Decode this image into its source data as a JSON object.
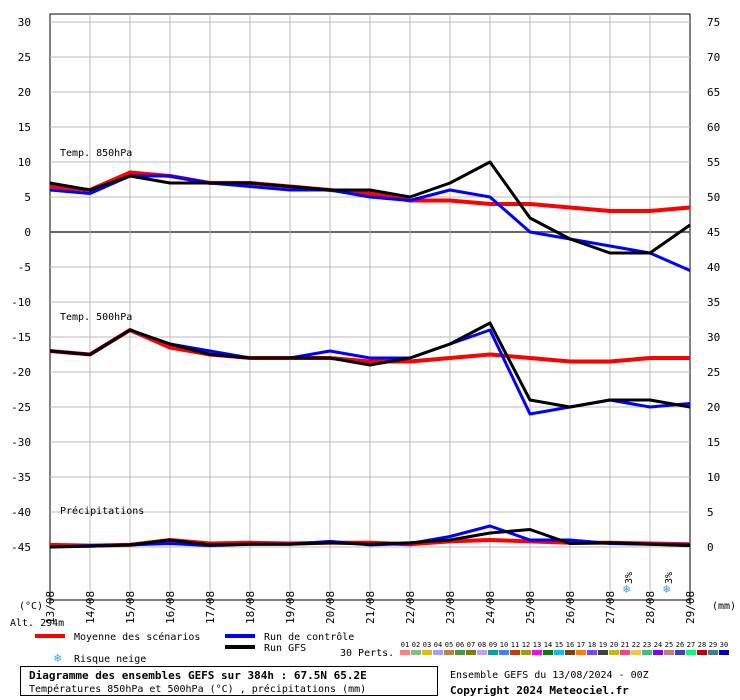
{
  "chart_data": {
    "type": "line",
    "title": "Diagramme des ensembles GEFS sur 384h : 67.5N 65.2E",
    "subtitle": "Températures 850hPa et 500hPa (°C) , précipitations (mm)",
    "y_left_label": "(°C)",
    "y_right_label": "(mm)",
    "y_left_ticks": [
      "30",
      "25",
      "20",
      "15",
      "10",
      "5",
      "0",
      "-5",
      "-10",
      "-15",
      "-20",
      "-25",
      "-30",
      "-35",
      "-40",
      "-45"
    ],
    "y_right_ticks": [
      "75",
      "70",
      "65",
      "60",
      "55",
      "50",
      "45",
      "40",
      "35",
      "30",
      "25",
      "20",
      "15",
      "10",
      "5",
      "0"
    ],
    "ylim_left": [
      -45,
      30
    ],
    "ylim_right": [
      0,
      75
    ],
    "x_ticks": [
      "13/08",
      "14/08",
      "15/08",
      "16/08",
      "17/08",
      "18/08",
      "19/08",
      "20/08",
      "21/08",
      "22/08",
      "23/08",
      "24/08",
      "25/08",
      "26/08",
      "27/08",
      "28/08",
      "29/08"
    ],
    "panel_labels": [
      "Temp. 850hPa",
      "Temp. 500hPa",
      "Précipitations"
    ],
    "altitude_label": "Alt. 294m",
    "snow_marks": [
      {
        "date": "27/08",
        "label": "3%"
      },
      {
        "date": "28/08",
        "label": "3%"
      }
    ],
    "series": [
      {
        "name": "Moyenne des scénarios",
        "panel": "850hPa",
        "color": "#ff0000",
        "values": [
          6.5,
          6,
          8.5,
          8,
          7,
          7,
          6.5,
          6,
          5.5,
          4.5,
          4.5,
          4,
          4,
          3.5,
          3,
          3,
          3.5
        ]
      },
      {
        "name": "Moyenne des scénarios",
        "panel": "500hPa",
        "color": "#ff0000",
        "values": [
          -17,
          -17.5,
          -14,
          -16.5,
          -17.5,
          -18,
          -18,
          -18,
          -18.5,
          -18.5,
          -18,
          -17.5,
          -18,
          -18.5,
          -18.5,
          -18,
          -18
        ]
      },
      {
        "name": "Moyenne des scénarios",
        "panel": "Précipitations",
        "color": "#ff0000",
        "values": [
          0.3,
          0.2,
          0.3,
          1,
          0.5,
          0.6,
          0.5,
          0.6,
          0.6,
          0.4,
          0.8,
          1,
          0.8,
          0.6,
          0.6,
          0.5,
          0.4
        ]
      },
      {
        "name": "Run de contrôle",
        "panel": "850hPa",
        "color": "#0000ff",
        "values": [
          6,
          5.5,
          8,
          8,
          7,
          6.5,
          6,
          6,
          5,
          4.5,
          6,
          5,
          0,
          -1,
          -2,
          -3,
          -5.5
        ]
      },
      {
        "name": "Run de contrôle",
        "panel": "500hPa",
        "color": "#0000ff",
        "values": [
          -17,
          -17.5,
          -14,
          -16,
          -17,
          -18,
          -18,
          -17,
          -18,
          -18,
          -16,
          -14,
          -26,
          -25,
          -24,
          -25,
          -24.5
        ]
      },
      {
        "name": "Run de contrôle",
        "panel": "Précipitations",
        "color": "#0000ff",
        "values": [
          0,
          0.2,
          0.3,
          0.5,
          0.2,
          0.4,
          0.4,
          0.8,
          0.3,
          0.5,
          1.5,
          3,
          1,
          1,
          0.5,
          0.4,
          0.3
        ]
      },
      {
        "name": "Run GFS",
        "panel": "850hPa",
        "color": "#000000",
        "values": [
          7,
          6,
          8,
          7,
          7,
          7,
          6.5,
          6,
          6,
          5,
          7,
          10,
          2,
          -1,
          -3,
          -3,
          1
        ]
      },
      {
        "name": "Run GFS",
        "panel": "500hPa",
        "color": "#000000",
        "values": [
          -17,
          -17.5,
          -14,
          -16,
          -17.5,
          -18,
          -18,
          -18,
          -19,
          -18,
          -16,
          -13,
          -24,
          -25,
          -24,
          -24,
          -25
        ]
      },
      {
        "name": "Run GFS",
        "panel": "Précipitations",
        "color": "#000000",
        "values": [
          0,
          0.1,
          0.3,
          1,
          0.3,
          0.4,
          0.4,
          0.6,
          0.4,
          0.6,
          1,
          2,
          2.5,
          0.5,
          0.6,
          0.4,
          0.2
        ]
      }
    ],
    "perturbations": {
      "count_label": "30 Perts.",
      "labels": [
        "01",
        "02",
        "03",
        "04",
        "05",
        "06",
        "07",
        "08",
        "09",
        "10",
        "11",
        "12",
        "13",
        "14",
        "15",
        "16",
        "17",
        "18",
        "19",
        "20",
        "21",
        "22",
        "23",
        "24",
        "25",
        "26",
        "27",
        "28",
        "29",
        "30"
      ],
      "colors": [
        "#ff8080",
        "#80c080",
        "#e0c000",
        "#a0a0ff",
        "#c08040",
        "#40a040",
        "#808000",
        "#c0a0ff",
        "#00a0a0",
        "#4080ff",
        "#c04000",
        "#a0a000",
        "#ff00ff",
        "#008000",
        "#00c0ff",
        "#804000",
        "#ff8000",
        "#8040ff",
        "#404040",
        "#c0c000",
        "#ff4080",
        "#ffc040",
        "#40c080",
        "#8000ff",
        "#c08080",
        "#4040c0",
        "#00ff80",
        "#c00000",
        "#408080",
        "#0000c0"
      ]
    },
    "legend": {
      "mean": "Moyenne des scénarios",
      "control": "Run de contrôle",
      "gfs": "Run GFS",
      "snow": "Risque neige"
    },
    "footer": {
      "ensemble": "Ensemble GEFS du 13/08/2024 - 00Z",
      "copyright": "Copyright 2024 Meteociel.fr"
    }
  }
}
